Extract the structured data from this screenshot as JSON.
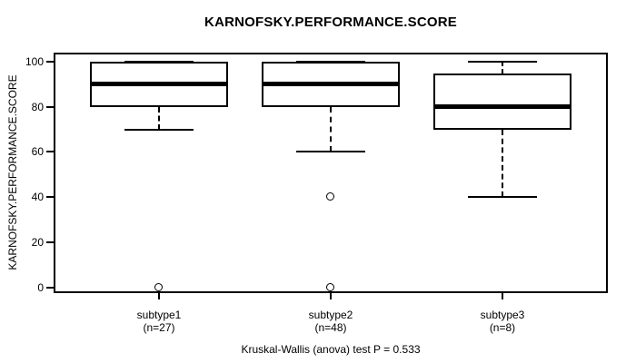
{
  "title": "KARNOFSKY.PERFORMANCE.SCORE",
  "caption": "Kruskal-Wallis (anova) test P = 0.533",
  "chart_data": {
    "type": "boxplot",
    "title": "KARNOFSKY.PERFORMANCE.SCORE",
    "ylabel": "KARNOFSKY.PERFORMANCE.SCORE",
    "xlabel": "",
    "ylim": [
      0,
      100
    ],
    "y_ticks": [
      0,
      20,
      40,
      60,
      80,
      100
    ],
    "grid": false,
    "legend": "none",
    "categories": [
      "subtype1",
      "subtype2",
      "subtype3"
    ],
    "category_sublabels": [
      "(n=27)",
      "(n=48)",
      "(n=8)"
    ],
    "series": [
      {
        "label": "subtype1",
        "n": 27,
        "whisker_low": 70,
        "q1": 80,
        "median": 90,
        "q3": 100,
        "whisker_high": 100,
        "outliers": [
          0
        ]
      },
      {
        "label": "subtype2",
        "n": 48,
        "whisker_low": 60,
        "q1": 80,
        "median": 90,
        "q3": 100,
        "whisker_high": 100,
        "outliers": [
          40,
          0
        ]
      },
      {
        "label": "subtype3",
        "n": 8,
        "whisker_low": 40,
        "q1": 70,
        "median": 80,
        "q3": 95,
        "whisker_high": 100,
        "outliers": []
      }
    ],
    "annotation": "Kruskal-Wallis (anova) test P = 0.533",
    "colors": {
      "line": "#000000",
      "background": "#ffffff",
      "box_fill": "#ffffff"
    }
  }
}
